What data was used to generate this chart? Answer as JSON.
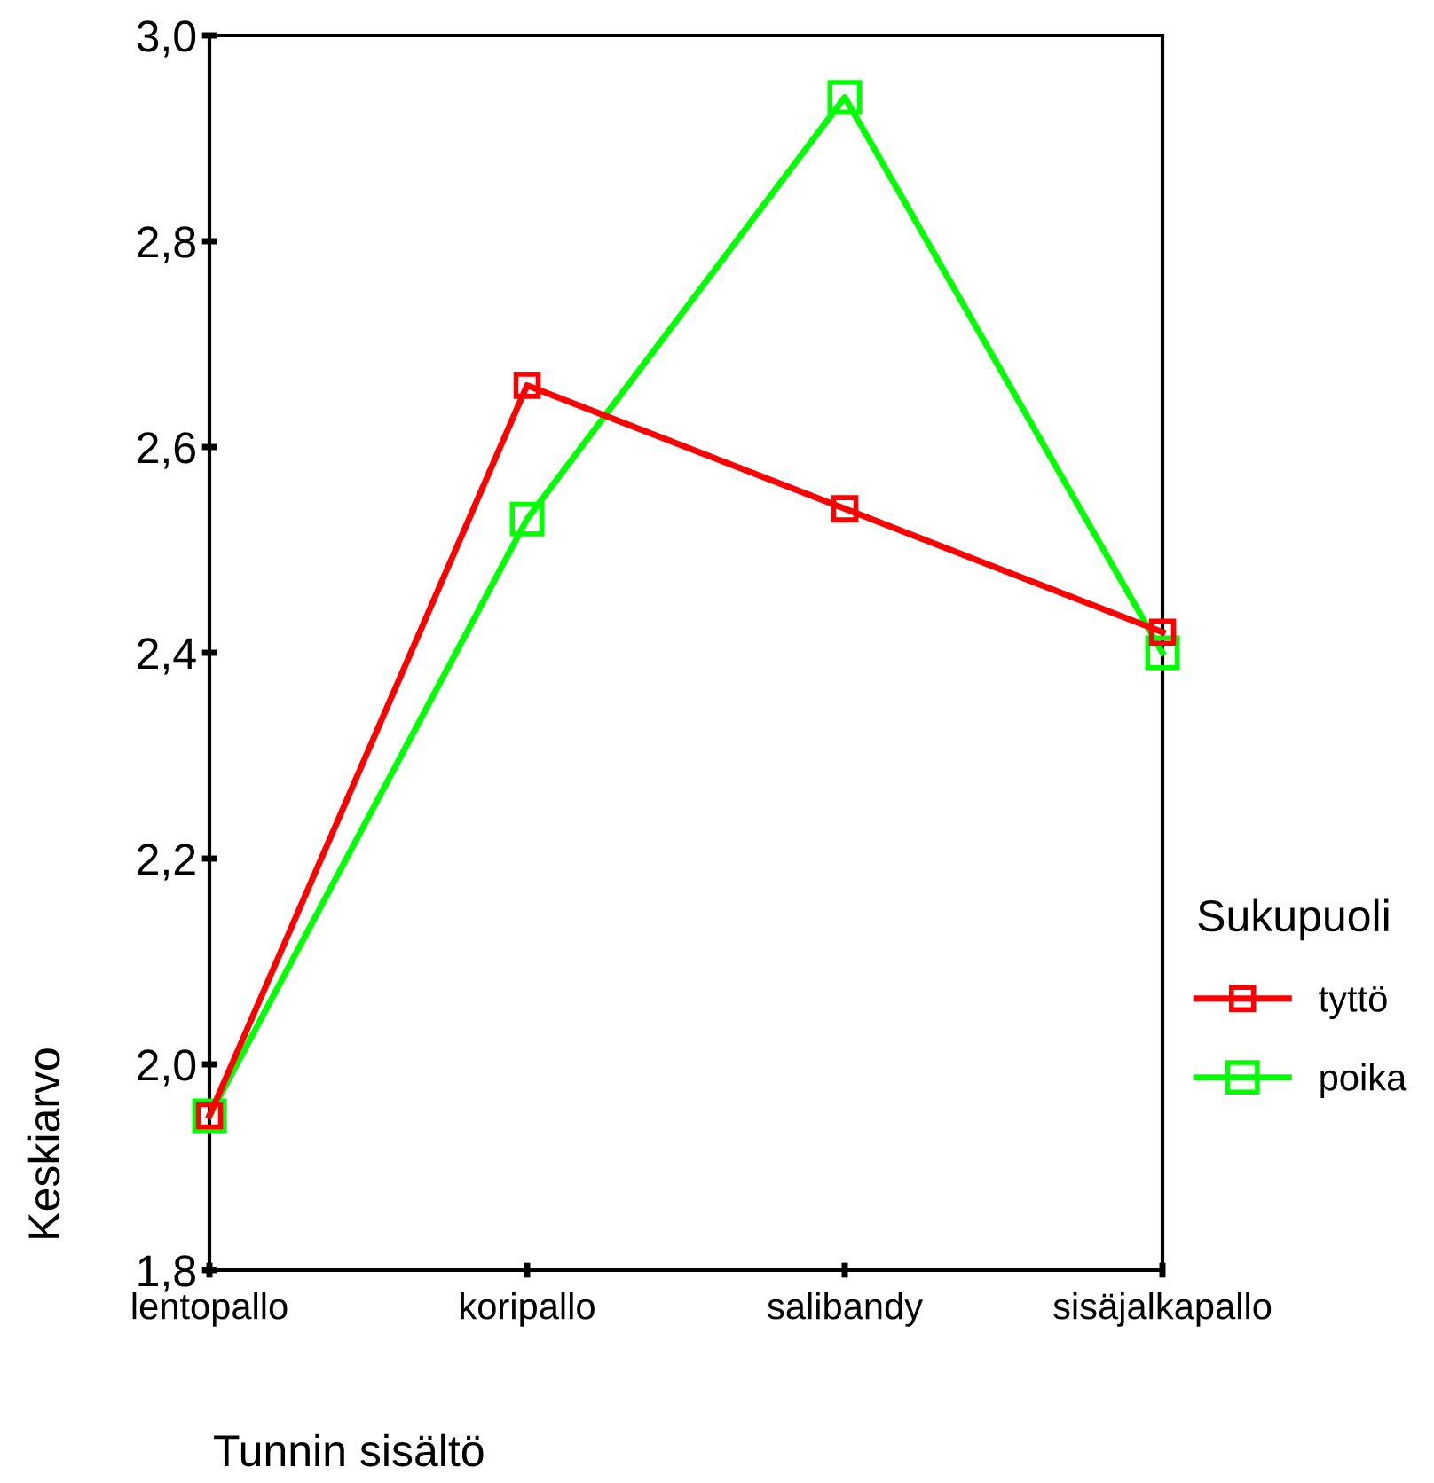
{
  "chart_data": {
    "type": "line",
    "xlabel": "Tunnin sisältö",
    "ylabel": "Keskiarvo",
    "legend_title": "Sukupuoli",
    "categories": [
      "lentopallo",
      "koripallo",
      "salibandy",
      "sisäjalkapallo"
    ],
    "series": [
      {
        "name": "tyttö",
        "color": "#ff0000",
        "values": [
          1.95,
          2.66,
          2.54,
          2.42
        ]
      },
      {
        "name": "poika",
        "color": "#00ff00",
        "values": [
          1.95,
          2.53,
          2.94,
          2.4
        ]
      }
    ],
    "ylim": [
      1.8,
      3.0
    ],
    "yticks": [
      {
        "value": 1.8,
        "label": "1,8"
      },
      {
        "value": 2.0,
        "label": "2,0"
      },
      {
        "value": 2.2,
        "label": "2,2"
      },
      {
        "value": 2.4,
        "label": "2,4"
      },
      {
        "value": 2.6,
        "label": "2,6"
      },
      {
        "value": 2.8,
        "label": "2,8"
      },
      {
        "value": 3.0,
        "label": "3,0"
      }
    ],
    "marker": "square",
    "line_style": "solid",
    "grid": false,
    "legend": "right"
  }
}
